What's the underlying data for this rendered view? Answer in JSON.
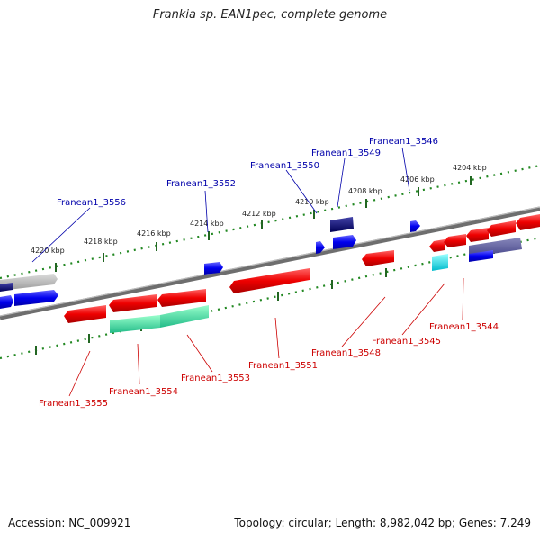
{
  "title": "Frankia sp. EAN1pec, complete genome",
  "accession": "Accession: NC_009921",
  "summary": "Topology: circular; Length: 8,982,042 bp; Genes: 7,249",
  "ticks": [
    {
      "label": "4204 kbp"
    },
    {
      "label": "4206 kbp"
    },
    {
      "label": "4208 kbp"
    },
    {
      "label": "4210 kbp"
    },
    {
      "label": "4212 kbp"
    },
    {
      "label": "4214 kbp"
    },
    {
      "label": "4216 kbp"
    },
    {
      "label": "4218 kbp"
    },
    {
      "label": "4220 kbp"
    }
  ],
  "genes_top": [
    {
      "name": "Franean1_3546"
    },
    {
      "name": "Franean1_3549"
    },
    {
      "name": "Franean1_3550"
    },
    {
      "name": "Franean1_3552"
    },
    {
      "name": "Franean1_3556"
    }
  ],
  "genes_bottom": [
    {
      "name": "Franean1_3544"
    },
    {
      "name": "Franean1_3545"
    },
    {
      "name": "Franean1_3548"
    },
    {
      "name": "Franean1_3551"
    },
    {
      "name": "Franean1_3553"
    },
    {
      "name": "Franean1_3554"
    },
    {
      "name": "Franean1_3555"
    }
  ],
  "colors": {
    "forward_gene": "#0000ee",
    "reverse_gene": "#ee0000",
    "dark_gene": "#000066",
    "pseudo_gene": "#aaaaaa",
    "rna_gene": "#33dd99",
    "cyan_gene": "#00dddd",
    "backbone": "#777777",
    "scale_dots": "#228822"
  }
}
